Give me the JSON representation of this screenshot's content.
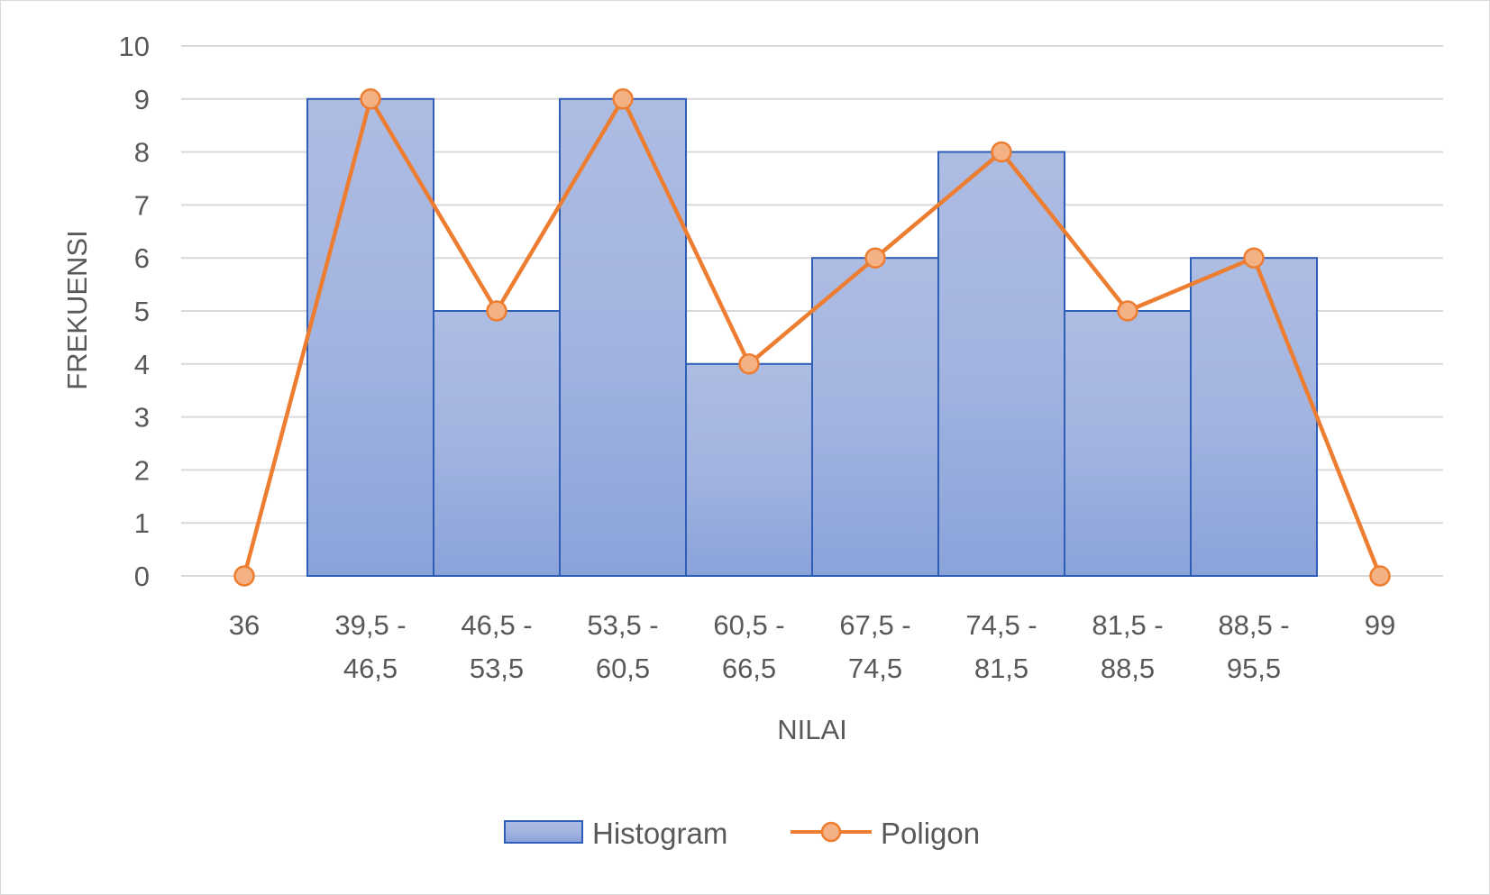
{
  "chart_data": {
    "type": "bar",
    "categories": [
      "36",
      "39,5 - 46,5",
      "46,5 - 53,5",
      "53,5 - 60,5",
      "60,5 - 66,5",
      "67,5 - 74,5",
      "74,5 - 81,5",
      "81,5 - 88,5",
      "88,5 - 95,5",
      "99"
    ],
    "category_lines": [
      [
        "36"
      ],
      [
        "39,5 -",
        "46,5"
      ],
      [
        "46,5 -",
        "53,5"
      ],
      [
        "53,5 -",
        "60,5"
      ],
      [
        "60,5 -",
        "66,5"
      ],
      [
        "67,5 -",
        "74,5"
      ],
      [
        "74,5 -",
        "81,5"
      ],
      [
        "81,5 -",
        "88,5"
      ],
      [
        "88,5 -",
        "95,5"
      ],
      [
        "99"
      ]
    ],
    "series": [
      {
        "name": "Histogram",
        "type": "bar",
        "values": [
          null,
          9,
          5,
          9,
          4,
          6,
          8,
          5,
          6,
          null
        ],
        "color": "#8faadc",
        "border": "#2f5eb8"
      },
      {
        "name": "Poligon",
        "type": "line",
        "values": [
          0,
          9,
          5,
          9,
          4,
          6,
          8,
          5,
          6,
          0
        ],
        "color": "#ed7d31",
        "marker_fill": "#f4b183"
      }
    ],
    "title": "",
    "xlabel": "NILAI",
    "ylabel": "FREKUENSI",
    "ylim": [
      0,
      10
    ],
    "yticks": [
      0,
      1,
      2,
      3,
      4,
      5,
      6,
      7,
      8,
      9,
      10
    ],
    "grid": true,
    "legend_position": "bottom"
  }
}
